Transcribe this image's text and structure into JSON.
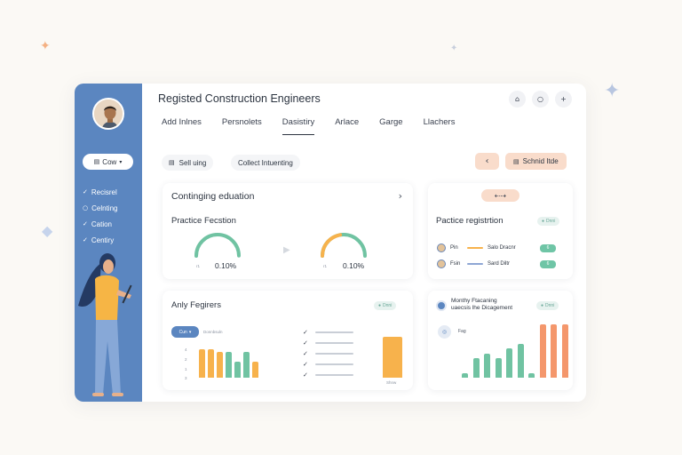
{
  "decor": {
    "sparkle_1_color": "#f4b183",
    "sparkle_2_color": "#c8cfdd",
    "sparkle_3_color": "#b8c6e0",
    "sparkle_4_color": "#c6d4ec"
  },
  "colors": {
    "accent_blue": "#5b86c0",
    "accent_orange": "#f7b24c",
    "accent_green": "#70c3a2",
    "accent_peach": "#f9dccb"
  },
  "sidebar": {
    "button_label": "Cow",
    "items": [
      {
        "label": "Recisrel"
      },
      {
        "label": "Celnting"
      },
      {
        "label": "Cation"
      },
      {
        "label": "Centiry"
      }
    ]
  },
  "header": {
    "title": "Registed Construction Engineers",
    "icons": [
      "home-icon",
      "circle-icon",
      "plus-icon"
    ]
  },
  "tabs": [
    {
      "label": "Add Inlnes"
    },
    {
      "label": "Persnolets"
    },
    {
      "label": "Dasistiry",
      "active": true
    },
    {
      "label": "Arlace"
    },
    {
      "label": "Garge"
    },
    {
      "label": "Llachers"
    }
  ],
  "toolbar": {
    "sell_label": "Sell uing",
    "collect_label": "Collect Intuenting",
    "submit_label": "Schnid Itde"
  },
  "continuing": {
    "title": "Continging eduation",
    "section": "Practice Fecstion",
    "gauges": [
      {
        "value": "0.10%",
        "small": "r1",
        "fraction": 1.0,
        "color": "#70c3a2"
      },
      {
        "value": "0.10%",
        "small": "r1",
        "fraction": 0.45,
        "color": "#f7b24c",
        "track": "#70c3a2"
      }
    ]
  },
  "practice": {
    "title": "Pactice registrtion",
    "pill": "Dnni",
    "rows": [
      {
        "name": "Pin",
        "label": "Salo Dracnr",
        "badge": "6",
        "color": "#f7b24c"
      },
      {
        "name": "Fsin",
        "label": "Sard Diltr",
        "badge": "6",
        "color": "#8ea6d4"
      }
    ]
  },
  "anly": {
    "title": "Anly Fegirers",
    "pill": "Dnni",
    "tab_label": "Cun",
    "legend_label": "Donnbsuln",
    "ticks": [
      "4",
      "2",
      "1",
      "3"
    ],
    "note": "Shnw",
    "bars": [
      {
        "value": 9,
        "color": "#f7b24c"
      },
      {
        "value": 9,
        "color": "#f7b24c"
      },
      {
        "value": 8,
        "color": "#f7b24c"
      },
      {
        "value": 8,
        "color": "#70c3a2"
      },
      {
        "value": 5,
        "color": "#70c3a2"
      },
      {
        "value": 8,
        "color": "#70c3a2"
      },
      {
        "value": 5,
        "color": "#f7b24c"
      }
    ],
    "big_bar": {
      "value": 10,
      "color": "#f7b24c"
    }
  },
  "monthly": {
    "title_line1": "Monthy Ftacaning",
    "title_line2": "uaecsis lhe Dicagement",
    "pill": "Dnni",
    "chip_label": "Fag",
    "bars": [
      {
        "value": 1,
        "color": "#70c3a2"
      },
      {
        "value": 4,
        "color": "#70c3a2"
      },
      {
        "value": 5,
        "color": "#70c3a2"
      },
      {
        "value": 4,
        "color": "#70c3a2"
      },
      {
        "value": 6,
        "color": "#70c3a2"
      },
      {
        "value": 7,
        "color": "#70c3a2"
      },
      {
        "value": 1,
        "color": "#70c3a2"
      },
      {
        "value": 11,
        "color": "#f4976c"
      },
      {
        "value": 11,
        "color": "#f4976c"
      },
      {
        "value": 11,
        "color": "#f4976c"
      }
    ]
  }
}
